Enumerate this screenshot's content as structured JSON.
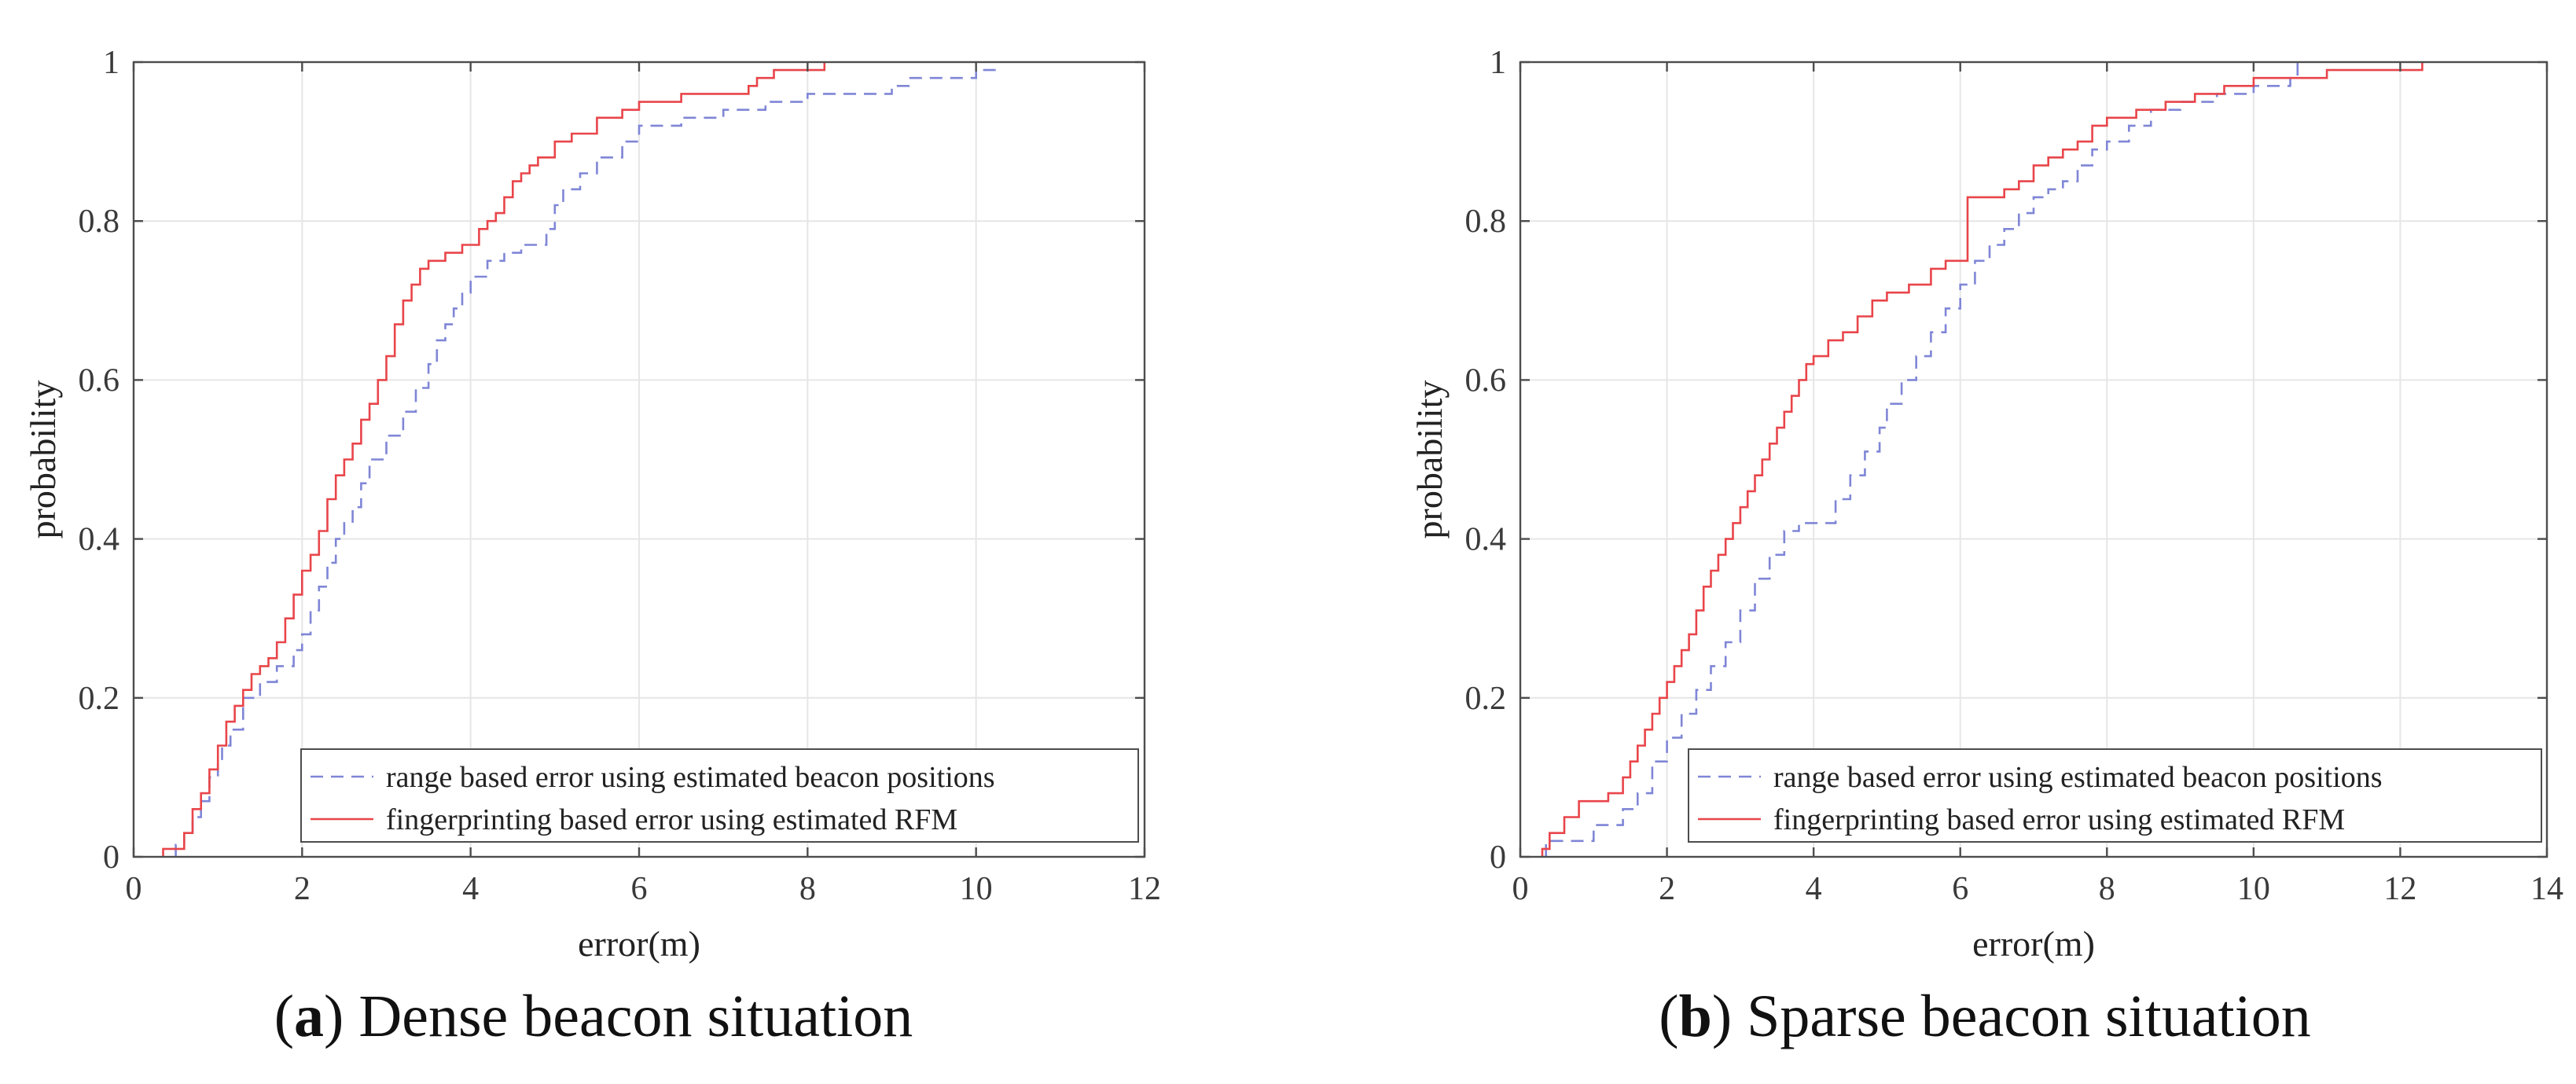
{
  "chart_data": [
    {
      "type": "line",
      "subtype": "empirical CDF (step)",
      "caption_letter": "a",
      "caption_text": "Dense beacon situation",
      "xlabel": "error(m)",
      "ylabel": "probability",
      "xlim": [
        0,
        12
      ],
      "ylim": [
        0,
        1
      ],
      "xticks": [
        "0",
        "2",
        "4",
        "6",
        "8",
        "10",
        "12"
      ],
      "yticks": [
        "0",
        "0.2",
        "0.4",
        "0.6",
        "0.8",
        "1"
      ],
      "grid": true,
      "legend_position": "bottom-right",
      "series": [
        {
          "name": "range based error using estimated beacon positions",
          "style": "dashed",
          "color": "#7f86d6",
          "x": [
            0.5,
            0.6,
            0.7,
            0.8,
            0.9,
            1.0,
            1.05,
            1.15,
            1.3,
            1.5,
            1.7,
            1.9,
            2.0,
            2.1,
            2.2,
            2.3,
            2.4,
            2.5,
            2.6,
            2.7,
            2.8,
            3.0,
            3.2,
            3.35,
            3.5,
            3.6,
            3.7,
            3.8,
            3.9,
            4.0,
            4.2,
            4.4,
            4.6,
            4.9,
            5.0,
            5.1,
            5.3,
            5.5,
            5.8,
            6.0,
            6.5,
            7.0,
            7.5,
            8.0,
            8.5,
            9.0,
            9.2,
            10.0,
            10.3
          ],
          "y": [
            0.015,
            0.03,
            0.05,
            0.07,
            0.1,
            0.12,
            0.14,
            0.16,
            0.2,
            0.22,
            0.24,
            0.26,
            0.28,
            0.31,
            0.34,
            0.37,
            0.4,
            0.42,
            0.44,
            0.47,
            0.5,
            0.53,
            0.56,
            0.59,
            0.62,
            0.65,
            0.67,
            0.69,
            0.71,
            0.73,
            0.75,
            0.76,
            0.77,
            0.79,
            0.82,
            0.84,
            0.86,
            0.88,
            0.9,
            0.92,
            0.93,
            0.94,
            0.95,
            0.96,
            0.96,
            0.97,
            0.98,
            0.99,
            0.99
          ]
        },
        {
          "name": "fingerprinting based error using estimated RFM",
          "style": "solid",
          "color": "#e8454a",
          "x": [
            0.35,
            0.6,
            0.7,
            0.8,
            0.9,
            1.0,
            1.1,
            1.2,
            1.3,
            1.4,
            1.5,
            1.6,
            1.7,
            1.8,
            1.9,
            2.0,
            2.1,
            2.2,
            2.3,
            2.4,
            2.5,
            2.6,
            2.7,
            2.8,
            2.9,
            3.0,
            3.1,
            3.2,
            3.3,
            3.4,
            3.5,
            3.7,
            3.9,
            4.1,
            4.2,
            4.3,
            4.4,
            4.5,
            4.6,
            4.7,
            4.8,
            5.0,
            5.2,
            5.5,
            5.8,
            6.0,
            6.5,
            7.0,
            7.3,
            7.4,
            7.6,
            8.0,
            8.2
          ],
          "y": [
            0.01,
            0.03,
            0.06,
            0.08,
            0.11,
            0.14,
            0.17,
            0.19,
            0.21,
            0.23,
            0.24,
            0.25,
            0.27,
            0.3,
            0.33,
            0.36,
            0.38,
            0.41,
            0.45,
            0.48,
            0.5,
            0.52,
            0.55,
            0.57,
            0.6,
            0.63,
            0.67,
            0.7,
            0.72,
            0.74,
            0.75,
            0.76,
            0.77,
            0.79,
            0.8,
            0.81,
            0.83,
            0.85,
            0.86,
            0.87,
            0.88,
            0.9,
            0.91,
            0.93,
            0.94,
            0.95,
            0.96,
            0.96,
            0.97,
            0.98,
            0.99,
            0.99,
            1.0
          ]
        }
      ]
    },
    {
      "type": "line",
      "subtype": "empirical CDF (step)",
      "caption_letter": "b",
      "caption_text": "Sparse beacon situation",
      "xlabel": "error(m)",
      "ylabel": "probability",
      "xlim": [
        0,
        14
      ],
      "ylim": [
        0,
        1
      ],
      "xticks": [
        "0",
        "2",
        "4",
        "6",
        "8",
        "10",
        "12",
        "14"
      ],
      "yticks": [
        "0",
        "0.2",
        "0.4",
        "0.6",
        "0.8",
        "1"
      ],
      "grid": true,
      "legend_position": "bottom-right",
      "series": [
        {
          "name": "range based error using estimated beacon positions",
          "style": "dashed",
          "color": "#7f86d6",
          "x": [
            0.35,
            1.0,
            1.4,
            1.6,
            1.8,
            2.0,
            2.2,
            2.4,
            2.6,
            2.8,
            3.0,
            3.2,
            3.4,
            3.6,
            3.8,
            4.0,
            4.3,
            4.5,
            4.7,
            4.9,
            5.0,
            5.2,
            5.4,
            5.6,
            5.8,
            6.0,
            6.2,
            6.4,
            6.6,
            6.8,
            7.0,
            7.2,
            7.4,
            7.6,
            7.8,
            8.0,
            8.3,
            8.6,
            9.0,
            9.5,
            10.0,
            10.5,
            10.6
          ],
          "y": [
            0.02,
            0.04,
            0.06,
            0.08,
            0.12,
            0.15,
            0.18,
            0.21,
            0.24,
            0.27,
            0.31,
            0.35,
            0.38,
            0.41,
            0.42,
            0.42,
            0.45,
            0.48,
            0.51,
            0.54,
            0.57,
            0.6,
            0.63,
            0.66,
            0.69,
            0.72,
            0.75,
            0.77,
            0.79,
            0.81,
            0.83,
            0.84,
            0.85,
            0.87,
            0.89,
            0.9,
            0.92,
            0.94,
            0.95,
            0.96,
            0.97,
            0.98,
            1.0
          ]
        },
        {
          "name": "fingerprinting based error using estimated RFM",
          "style": "solid",
          "color": "#e8454a",
          "x": [
            0.3,
            0.4,
            0.6,
            0.8,
            1.2,
            1.4,
            1.5,
            1.6,
            1.7,
            1.8,
            1.9,
            2.0,
            2.1,
            2.2,
            2.3,
            2.4,
            2.5,
            2.6,
            2.7,
            2.8,
            2.9,
            3.0,
            3.1,
            3.2,
            3.3,
            3.4,
            3.5,
            3.6,
            3.7,
            3.8,
            3.9,
            4.0,
            4.2,
            4.4,
            4.6,
            4.8,
            5.0,
            5.3,
            5.6,
            5.8,
            6.1,
            6.3,
            6.6,
            6.8,
            7.0,
            7.2,
            7.4,
            7.6,
            7.8,
            8.0,
            8.4,
            8.8,
            9.2,
            9.6,
            10.0,
            11.0,
            12.3
          ],
          "y": [
            0.01,
            0.03,
            0.05,
            0.07,
            0.08,
            0.1,
            0.12,
            0.14,
            0.16,
            0.18,
            0.2,
            0.22,
            0.24,
            0.26,
            0.28,
            0.31,
            0.34,
            0.36,
            0.38,
            0.4,
            0.42,
            0.44,
            0.46,
            0.48,
            0.5,
            0.52,
            0.54,
            0.56,
            0.58,
            0.6,
            0.62,
            0.63,
            0.65,
            0.66,
            0.68,
            0.7,
            0.71,
            0.72,
            0.74,
            0.75,
            0.83,
            0.83,
            0.84,
            0.85,
            0.87,
            0.88,
            0.89,
            0.9,
            0.92,
            0.93,
            0.94,
            0.95,
            0.96,
            0.97,
            0.98,
            0.99,
            1.0
          ]
        }
      ]
    }
  ]
}
